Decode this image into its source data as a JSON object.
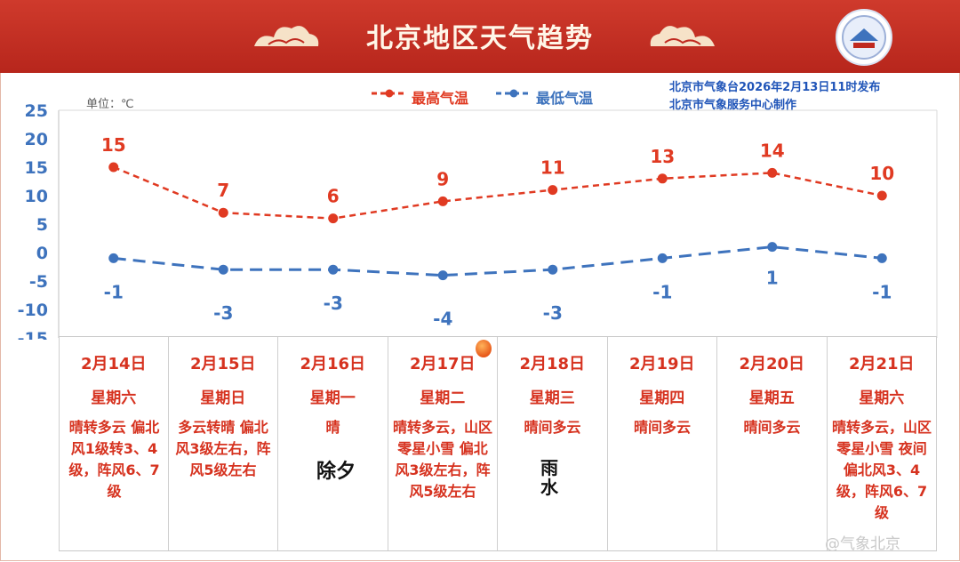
{
  "banner": {
    "title": "北京地区天气趋势"
  },
  "info": {
    "line1": "北京市气象台2026年2月13日11时发布",
    "line2": "北京市气象服务中心制作"
  },
  "unit_label": "单位：℃",
  "chart_data": {
    "type": "line",
    "categories": [
      "2月14日",
      "2月15日",
      "2月16日",
      "2月17日",
      "2月18日",
      "2月19日",
      "2月20日",
      "2月21日"
    ],
    "series": [
      {
        "name": "最高气温",
        "values": [
          15,
          7,
          6,
          9,
          11,
          13,
          14,
          10
        ],
        "color": "#e03a22",
        "style": "dashed"
      },
      {
        "name": "最低气温",
        "values": [
          -1,
          -3,
          -3,
          -4,
          -3,
          -1,
          1,
          -1
        ],
        "color": "#3e73bd",
        "style": "dashed"
      }
    ],
    "ylim": [
      -15,
      25
    ],
    "yticks": [
      25,
      20,
      15,
      10,
      5,
      0,
      -5,
      -10,
      -15
    ],
    "legend": "top",
    "grid": false
  },
  "days": [
    {
      "date": "2月14日",
      "weekday": "星期六",
      "desc": "晴转多云 偏北风1级转3、4级，阵风6、7级"
    },
    {
      "date": "2月15日",
      "weekday": "星期日",
      "desc": "多云转晴 偏北风3级左右，阵风5级左右"
    },
    {
      "date": "2月16日",
      "weekday": "星期一",
      "desc": "晴"
    },
    {
      "date": "2月17日",
      "weekday": "星期二",
      "desc": "晴转多云，山区零星小雪 偏北风3级左右，阵风5级左右"
    },
    {
      "date": "2月18日",
      "weekday": "星期三",
      "desc": "晴间多云"
    },
    {
      "date": "2月19日",
      "weekday": "星期四",
      "desc": "晴间多云"
    },
    {
      "date": "2月20日",
      "weekday": "星期五",
      "desc": "晴间多云"
    },
    {
      "date": "2月21日",
      "weekday": "星期六",
      "desc": "晴转多云，山区零星小雪 夜间偏北风3、4级，阵风6、7级"
    }
  ],
  "stamps": {
    "chuxi": "除夕",
    "yushui": "雨水"
  },
  "watermark": "@气象北京",
  "colors": {
    "banner": "#c0291f",
    "high": "#e03a22",
    "low": "#3e73bd",
    "axis": "#3e73bd",
    "table_text": "#d6321f"
  }
}
